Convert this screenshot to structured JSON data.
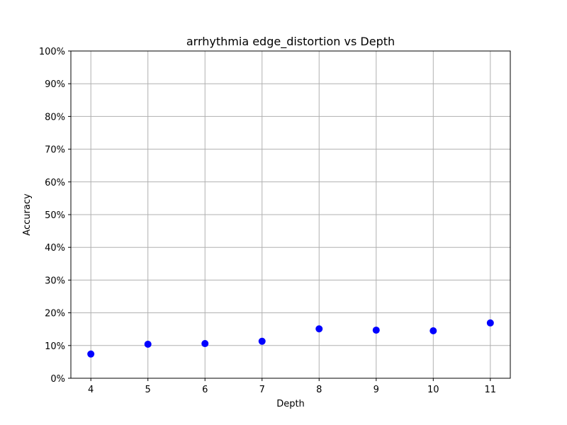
{
  "chart_data": {
    "type": "scatter",
    "title": "arrhythmia edge_distortion vs Depth",
    "xlabel": "Depth",
    "ylabel": "Accuracy",
    "x": [
      4,
      5,
      6,
      7,
      8,
      9,
      10,
      11
    ],
    "y": [
      7.4,
      10.4,
      10.6,
      11.3,
      15.1,
      14.7,
      14.5,
      16.9
    ],
    "xlim": [
      3.65,
      11.35
    ],
    "ylim": [
      0,
      100
    ],
    "xticks": [
      4,
      5,
      6,
      7,
      8,
      9,
      10,
      11
    ],
    "yticks": [
      0,
      10,
      20,
      30,
      40,
      50,
      60,
      70,
      80,
      90,
      100
    ],
    "ytick_format": "percent",
    "grid": true,
    "marker_color": "#0000ff"
  }
}
